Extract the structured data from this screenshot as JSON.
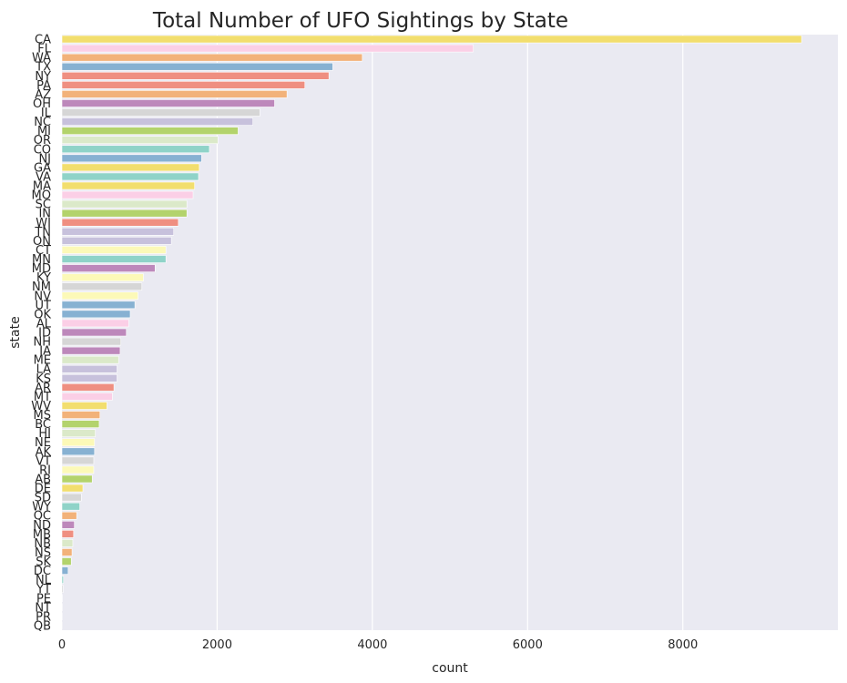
{
  "chart_data": {
    "type": "bar",
    "orientation": "horizontal",
    "title": "Total Number of UFO Sightings by State",
    "xlabel": "count",
    "ylabel": "state",
    "xlim": [
      0,
      10000
    ],
    "xticks": [
      0,
      2000,
      4000,
      6000,
      8000
    ],
    "grid": true,
    "categories": [
      "CA",
      "FL",
      "WA",
      "TX",
      "NY",
      "PA",
      "AZ",
      "OH",
      "IL",
      "NC",
      "MI",
      "OR",
      "CO",
      "NJ",
      "GA",
      "VA",
      "MA",
      "MO",
      "SC",
      "IN",
      "WI",
      "TN",
      "ON",
      "CT",
      "MN",
      "MD",
      "KY",
      "NM",
      "NV",
      "UT",
      "OK",
      "AL",
      "ID",
      "NH",
      "IA",
      "ME",
      "LA",
      "KS",
      "AR",
      "MT",
      "WV",
      "MS",
      "BC",
      "HI",
      "NE",
      "AK",
      "VT",
      "RI",
      "AB",
      "DE",
      "SD",
      "WY",
      "QC",
      "ND",
      "MB",
      "NB",
      "NS",
      "SK",
      "DC",
      "NL",
      "YT",
      "PE",
      "NT",
      "PR",
      "QB"
    ],
    "values": [
      9530,
      5300,
      3870,
      3490,
      3440,
      3130,
      2900,
      2740,
      2550,
      2460,
      2270,
      2010,
      1900,
      1800,
      1770,
      1760,
      1710,
      1690,
      1610,
      1610,
      1500,
      1440,
      1410,
      1340,
      1340,
      1200,
      1050,
      1030,
      980,
      940,
      880,
      860,
      830,
      760,
      750,
      730,
      710,
      710,
      670,
      650,
      580,
      490,
      480,
      430,
      420,
      420,
      410,
      410,
      390,
      270,
      250,
      230,
      190,
      160,
      150,
      140,
      130,
      120,
      80,
      20,
      15,
      5,
      3,
      2,
      1
    ],
    "colors": [
      "#f2de6e",
      "#fbcfe6",
      "#f2b27a",
      "#87b1d2",
      "#ef8f81",
      "#ef8f81",
      "#f2b27a",
      "#bd88bb",
      "#d6d6d6",
      "#c7c1dc",
      "#b3d36c",
      "#dbe9c9",
      "#8fd3c8",
      "#87b1d2",
      "#f2de6e",
      "#8fd3c8",
      "#f2de6e",
      "#fbcfe6",
      "#dbe9c9",
      "#b3d36c",
      "#ef8f81",
      "#c7c1dc",
      "#c7c1dc",
      "#fcf9b8",
      "#8fd3c8",
      "#bd88bb",
      "#fcf9b8",
      "#d6d6d6",
      "#fcf9b8",
      "#87b1d2",
      "#87b1d2",
      "#fbcfe6",
      "#bd88bb",
      "#d6d6d6",
      "#bd88bb",
      "#dbe9c9",
      "#c7c1dc",
      "#c7c1dc",
      "#ef8f81",
      "#fbcfe6",
      "#f2de6e",
      "#f2b27a",
      "#b3d36c",
      "#dbe9c9",
      "#fcf9b8",
      "#87b1d2",
      "#d6d6d6",
      "#fcf9b8",
      "#b3d36c",
      "#f2de6e",
      "#d6d6d6",
      "#8fd3c8",
      "#f2b27a",
      "#bd88bb",
      "#ef8f81",
      "#dbe9c9",
      "#f2b27a",
      "#b3d36c",
      "#87b1d2",
      "#8fd3c8",
      "#d6d6d6",
      "#fcf9b8",
      "#fbcfe6",
      "#dbe9c9",
      "#c7c1dc"
    ],
    "plot_background": "#eaeaf2",
    "grid_color": "#ffffff"
  }
}
